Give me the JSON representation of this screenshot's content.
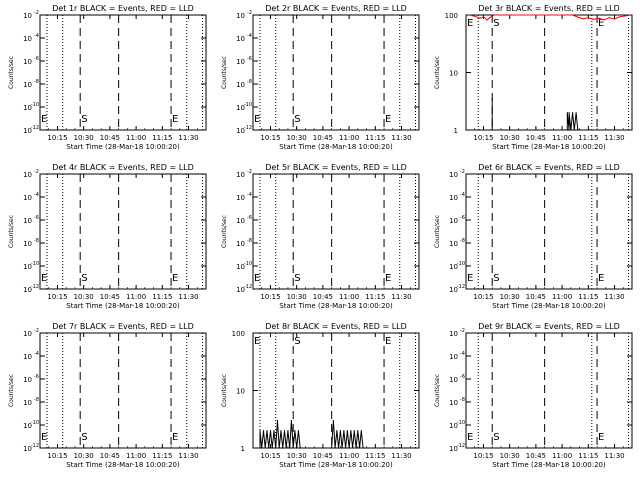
{
  "chart_data": {
    "type": "line",
    "x_ticks": [
      "10:15",
      "10:30",
      "10:45",
      "11:00",
      "11:15",
      "11:30"
    ],
    "x_label": "Start Time (28-Mar-18 10:00:20)",
    "y_label": "Counts/sec",
    "panels": [
      {
        "title": "Det 1r BLACK = Events, RED = LLD",
        "yscale": "log",
        "ylim": [
          1e-12,
          0.01
        ],
        "y_ticks": [
          "10",
          "10",
          "10",
          "10",
          "10",
          "10"
        ],
        "y_exp": [
          "-2",
          "-4",
          "-6",
          "-8",
          "-10",
          "-12"
        ],
        "markers": {
          "S": "10:28",
          "E": "11:20"
        },
        "dotted_x": [
          "10:09",
          "10:18",
          "11:29",
          "11:38"
        ],
        "dashed_x": [
          "10:28",
          "10:50",
          "11:20"
        ],
        "black_series": [],
        "red_series": []
      },
      {
        "title": "Det 2r BLACK = Events, RED = LLD",
        "yscale": "log",
        "ylim": [
          1e-12,
          0.01
        ],
        "y_ticks": [
          "10",
          "10",
          "10",
          "10",
          "10",
          "10"
        ],
        "y_exp": [
          "-2",
          "-4",
          "-6",
          "-8",
          "-10",
          "-12"
        ],
        "markers": {
          "S": "10:28",
          "E": "11:20"
        },
        "dotted_x": [
          "10:09",
          "10:18",
          "11:29",
          "11:38"
        ],
        "dashed_x": [
          "10:28",
          "10:50",
          "11:20"
        ],
        "black_series": [],
        "red_series": []
      },
      {
        "title": "Det 3r BLACK = Events, RED = LLD",
        "yscale": "log",
        "ylim": [
          1,
          100
        ],
        "y_ticks": [
          "100",
          "10",
          "1"
        ],
        "y_exp": [],
        "markers": {
          "S": "10:20",
          "E": "11:20"
        },
        "dotted_x": [
          "10:12",
          "11:17",
          "11:38"
        ],
        "dashed_x": [
          "10:20",
          "10:50",
          "11:20"
        ],
        "black_series": [
          [
            "10:20",
            1
          ],
          [
            "10:20",
            3.5
          ],
          [
            "10:20",
            1
          ],
          [
            "11:03",
            1
          ],
          [
            "11:03",
            2
          ],
          [
            "11:04",
            1
          ],
          [
            "11:04",
            2
          ],
          [
            "11:05",
            1
          ],
          [
            "11:06",
            2
          ],
          [
            "11:07",
            1
          ],
          [
            "11:08",
            2
          ],
          [
            "11:09",
            1
          ]
        ],
        "red_series": [
          [
            "10:07",
            100
          ],
          [
            "10:10",
            95
          ],
          [
            "10:13",
            88
          ],
          [
            "10:15",
            93
          ],
          [
            "10:17",
            82
          ],
          [
            "10:19",
            92
          ],
          [
            "10:21",
            100
          ],
          [
            "11:06",
            100
          ],
          [
            "11:09",
            92
          ],
          [
            "11:12",
            86
          ],
          [
            "11:15",
            90
          ],
          [
            "11:18",
            84
          ],
          [
            "11:21",
            88
          ],
          [
            "11:24",
            82
          ],
          [
            "11:27",
            90
          ],
          [
            "11:30",
            85
          ],
          [
            "11:33",
            93
          ],
          [
            "11:36",
            96
          ],
          [
            "11:39",
            100
          ]
        ]
      },
      {
        "title": "Det 4r BLACK = Events, RED = LLD",
        "yscale": "log",
        "ylim": [
          1e-12,
          0.01
        ],
        "y_ticks": [
          "10",
          "10",
          "10",
          "10",
          "10",
          "10"
        ],
        "y_exp": [
          "-2",
          "-4",
          "-6",
          "-8",
          "-10",
          "-12"
        ],
        "markers": {
          "S": "10:28",
          "E": "11:20"
        },
        "dotted_x": [
          "10:09",
          "10:18",
          "11:29",
          "11:38"
        ],
        "dashed_x": [
          "10:28",
          "10:50",
          "11:20"
        ],
        "black_series": [],
        "red_series": []
      },
      {
        "title": "Det 5r BLACK = Events, RED = LLD",
        "yscale": "log",
        "ylim": [
          1e-12,
          0.01
        ],
        "y_ticks": [
          "10",
          "10",
          "10",
          "10",
          "10",
          "10"
        ],
        "y_exp": [
          "-2",
          "-4",
          "-6",
          "-8",
          "-10",
          "-12"
        ],
        "markers": {
          "S": "10:28",
          "E": "11:20"
        },
        "dotted_x": [
          "10:09",
          "10:18",
          "11:29",
          "11:38"
        ],
        "dashed_x": [
          "10:28",
          "10:50",
          "11:20"
        ],
        "black_series": [],
        "red_series": []
      },
      {
        "title": "Det 6r BLACK = Events, RED = LLD",
        "yscale": "log",
        "ylim": [
          1e-12,
          0.01
        ],
        "y_ticks": [
          "10",
          "10",
          "10",
          "10",
          "10",
          "10"
        ],
        "y_exp": [
          "-2",
          "-4",
          "-6",
          "-8",
          "-10",
          "-12"
        ],
        "markers": {
          "S": "10:20",
          "E": "11:20"
        },
        "dotted_x": [
          "10:12",
          "11:17",
          "11:38"
        ],
        "dashed_x": [
          "10:20",
          "10:50",
          "11:20"
        ],
        "black_series": [],
        "red_series": []
      },
      {
        "title": "Det 7r BLACK = Events, RED = LLD",
        "yscale": "log",
        "ylim": [
          1e-12,
          0.01
        ],
        "y_ticks": [
          "10",
          "10",
          "10",
          "10",
          "10",
          "10"
        ],
        "y_exp": [
          "-2",
          "-4",
          "-6",
          "-8",
          "-10",
          "-12"
        ],
        "markers": {
          "S": "10:28",
          "E": "11:20"
        },
        "dotted_x": [
          "10:09",
          "10:18",
          "11:29",
          "11:38"
        ],
        "dashed_x": [
          "10:28",
          "10:50",
          "11:20"
        ],
        "black_series": [],
        "red_series": []
      },
      {
        "title": "Det 8r BLACK = Events, RED = LLD",
        "yscale": "log",
        "ylim": [
          1,
          100
        ],
        "y_ticks": [
          "100",
          "10",
          "1"
        ],
        "y_exp": [],
        "markers": {
          "S": "10:28",
          "E": "11:20"
        },
        "dotted_x": [
          "10:09",
          "10:18",
          "11:29",
          "11:38"
        ],
        "dashed_x": [
          "10:28",
          "10:50",
          "11:20"
        ],
        "black_series": [
          [
            "10:09",
            1
          ],
          [
            "10:09",
            2
          ],
          [
            "10:10",
            1
          ],
          [
            "10:11",
            2
          ],
          [
            "10:12",
            1
          ],
          [
            "10:13",
            2
          ],
          [
            "10:14",
            1
          ],
          [
            "10:15",
            2
          ],
          [
            "10:16",
            1
          ],
          [
            "10:17",
            2
          ],
          [
            "10:18",
            1
          ],
          [
            "10:19",
            3
          ],
          [
            "10:20",
            1
          ],
          [
            "10:21",
            2
          ],
          [
            "10:22",
            1
          ],
          [
            "10:23",
            2
          ],
          [
            "10:24",
            1
          ],
          [
            "10:25",
            2
          ],
          [
            "10:26",
            1
          ],
          [
            "10:27",
            3
          ],
          [
            "10:28",
            1
          ],
          [
            "10:29",
            2
          ],
          [
            "10:30",
            1
          ],
          [
            "10:31",
            2
          ],
          [
            "10:32",
            1
          ],
          [
            "10:50",
            1
          ],
          [
            "10:51",
            3
          ],
          [
            "10:52",
            1
          ],
          [
            "10:53",
            2
          ],
          [
            "10:54",
            1
          ],
          [
            "10:55",
            2
          ],
          [
            "10:56",
            1
          ],
          [
            "10:57",
            2
          ],
          [
            "10:58",
            1
          ],
          [
            "10:59",
            2
          ],
          [
            "11:00",
            1
          ],
          [
            "11:01",
            2
          ],
          [
            "11:02",
            1
          ],
          [
            "11:03",
            2
          ],
          [
            "11:04",
            1
          ],
          [
            "11:05",
            2
          ],
          [
            "11:06",
            1
          ],
          [
            "11:07",
            2
          ],
          [
            "11:08",
            1
          ]
        ],
        "red_series": []
      },
      {
        "title": "Det 9r BLACK = Events, RED = LLD",
        "yscale": "log",
        "ylim": [
          1e-12,
          0.01
        ],
        "y_ticks": [
          "10",
          "10",
          "10",
          "10",
          "10",
          "10"
        ],
        "y_exp": [
          "-2",
          "-4",
          "-6",
          "-8",
          "-10",
          "-12"
        ],
        "markers": {
          "S": "10:20",
          "E": "11:20"
        },
        "dotted_x": [
          "10:12",
          "11:17",
          "11:38"
        ],
        "dashed_x": [
          "10:20",
          "10:50",
          "11:20"
        ],
        "black_series": [],
        "red_series": []
      }
    ]
  },
  "colors": {
    "events": "#000000",
    "lld": "#ff0000"
  }
}
